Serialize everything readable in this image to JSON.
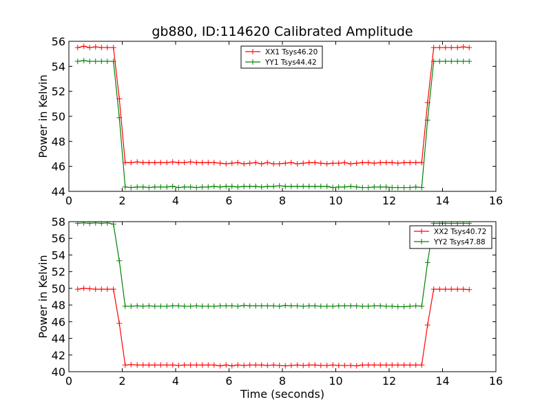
{
  "chart_data": [
    {
      "type": "line",
      "title": "gb880, ID:114620 Calibrated Amplitude",
      "xlabel": "",
      "ylabel": "Power in Kelvin",
      "xlim": [
        0,
        16
      ],
      "ylim": [
        44,
        56
      ],
      "xticks": [
        0,
        2,
        4,
        6,
        8,
        10,
        12,
        14,
        16
      ],
      "yticks": [
        44,
        46,
        48,
        50,
        52,
        54,
        56
      ],
      "legend_position": "top-center",
      "grid": false,
      "series": [
        {
          "name": "XX1 Tsys46.20",
          "color": "#ff0000",
          "x": [
            0.33,
            0.56,
            0.78,
            1.0,
            1.22,
            1.44,
            1.67,
            1.89,
            2.11,
            2.33,
            2.56,
            2.78,
            3.0,
            3.22,
            3.44,
            3.67,
            3.89,
            4.11,
            4.33,
            4.56,
            4.78,
            5.0,
            5.22,
            5.44,
            5.67,
            5.89,
            6.11,
            6.33,
            6.56,
            6.78,
            7.0,
            7.22,
            7.44,
            7.67,
            7.89,
            8.11,
            8.33,
            8.56,
            8.78,
            9.0,
            9.22,
            9.44,
            9.67,
            9.89,
            10.11,
            10.33,
            10.56,
            10.78,
            11.0,
            11.22,
            11.44,
            11.67,
            11.89,
            12.11,
            12.33,
            12.56,
            12.78,
            13.0,
            13.22,
            13.44,
            13.67,
            13.89,
            14.11,
            14.33,
            14.56,
            14.78,
            15.0
          ],
          "y": [
            55.5,
            55.6,
            55.5,
            55.55,
            55.5,
            55.5,
            55.5,
            51.4,
            46.3,
            46.3,
            46.35,
            46.3,
            46.3,
            46.3,
            46.3,
            46.3,
            46.35,
            46.3,
            46.3,
            46.35,
            46.3,
            46.3,
            46.3,
            46.3,
            46.25,
            46.2,
            46.25,
            46.3,
            46.2,
            46.25,
            46.3,
            46.2,
            46.3,
            46.2,
            46.2,
            46.25,
            46.3,
            46.2,
            46.25,
            46.3,
            46.3,
            46.25,
            46.2,
            46.25,
            46.25,
            46.3,
            46.2,
            46.25,
            46.3,
            46.3,
            46.25,
            46.3,
            46.3,
            46.3,
            46.25,
            46.3,
            46.3,
            46.3,
            46.3,
            51.1,
            55.5,
            55.5,
            55.5,
            55.5,
            55.5,
            55.55,
            55.5
          ]
        },
        {
          "name": "YY1 Tsys44.42",
          "color": "#008000",
          "x": [
            0.33,
            0.56,
            0.78,
            1.0,
            1.22,
            1.44,
            1.67,
            1.89,
            2.11,
            2.33,
            2.56,
            2.78,
            3.0,
            3.22,
            3.44,
            3.67,
            3.89,
            4.11,
            4.33,
            4.56,
            4.78,
            5.0,
            5.22,
            5.44,
            5.67,
            5.89,
            6.11,
            6.33,
            6.56,
            6.78,
            7.0,
            7.22,
            7.44,
            7.67,
            7.89,
            8.11,
            8.33,
            8.56,
            8.78,
            9.0,
            9.22,
            9.44,
            9.67,
            9.89,
            10.11,
            10.33,
            10.56,
            10.78,
            11.0,
            11.22,
            11.44,
            11.67,
            11.89,
            12.11,
            12.33,
            12.56,
            12.78,
            13.0,
            13.22,
            13.44,
            13.67,
            13.89,
            14.11,
            14.33,
            14.56,
            14.78,
            15.0
          ],
          "y": [
            54.4,
            54.45,
            54.4,
            54.4,
            54.4,
            54.4,
            54.4,
            49.9,
            44.35,
            44.3,
            44.35,
            44.35,
            44.3,
            44.35,
            44.35,
            44.35,
            44.4,
            44.3,
            44.35,
            44.35,
            44.3,
            44.35,
            44.35,
            44.4,
            44.35,
            44.4,
            44.4,
            44.35,
            44.4,
            44.4,
            44.4,
            44.35,
            44.4,
            44.4,
            44.45,
            44.4,
            44.4,
            44.4,
            44.4,
            44.4,
            44.4,
            44.4,
            44.4,
            44.3,
            44.35,
            44.35,
            44.4,
            44.35,
            44.3,
            44.3,
            44.35,
            44.35,
            44.35,
            44.3,
            44.3,
            44.3,
            44.3,
            44.35,
            44.3,
            49.7,
            54.4,
            54.4,
            54.4,
            54.4,
            54.4,
            54.4,
            54.4
          ]
        }
      ]
    },
    {
      "type": "line",
      "title": "",
      "xlabel": "Time (seconds)",
      "ylabel": "Power in Kelvin",
      "xlim": [
        0,
        16
      ],
      "ylim": [
        40,
        58
      ],
      "xticks": [
        0,
        2,
        4,
        6,
        8,
        10,
        12,
        14,
        16
      ],
      "yticks": [
        40,
        42,
        44,
        46,
        48,
        50,
        52,
        54,
        56,
        58
      ],
      "legend_position": "top-right",
      "grid": false,
      "series": [
        {
          "name": "XX2 Tsys40.72",
          "color": "#ff0000",
          "x": [
            0.33,
            0.56,
            0.78,
            1.0,
            1.22,
            1.44,
            1.67,
            1.89,
            2.11,
            2.33,
            2.56,
            2.78,
            3.0,
            3.22,
            3.44,
            3.67,
            3.89,
            4.11,
            4.33,
            4.56,
            4.78,
            5.0,
            5.22,
            5.44,
            5.67,
            5.89,
            6.11,
            6.33,
            6.56,
            6.78,
            7.0,
            7.22,
            7.44,
            7.67,
            7.89,
            8.11,
            8.33,
            8.56,
            8.78,
            9.0,
            9.22,
            9.44,
            9.67,
            9.89,
            10.11,
            10.33,
            10.56,
            10.78,
            11.0,
            11.22,
            11.44,
            11.67,
            11.89,
            12.11,
            12.33,
            12.56,
            12.78,
            13.0,
            13.22,
            13.44,
            13.67,
            13.89,
            14.11,
            14.33,
            14.56,
            14.78,
            15.0
          ],
          "y": [
            49.9,
            50.0,
            49.95,
            49.9,
            49.9,
            49.9,
            49.9,
            45.8,
            40.8,
            40.85,
            40.8,
            40.8,
            40.8,
            40.8,
            40.8,
            40.8,
            40.8,
            40.75,
            40.8,
            40.8,
            40.8,
            40.8,
            40.8,
            40.8,
            40.7,
            40.8,
            40.7,
            40.8,
            40.75,
            40.8,
            40.8,
            40.8,
            40.75,
            40.8,
            40.75,
            40.7,
            40.75,
            40.8,
            40.75,
            40.8,
            40.8,
            40.75,
            40.75,
            40.8,
            40.75,
            40.75,
            40.75,
            40.7,
            40.8,
            40.8,
            40.8,
            40.8,
            40.8,
            40.8,
            40.8,
            40.8,
            40.8,
            40.8,
            40.8,
            45.6,
            49.9,
            49.9,
            49.9,
            49.9,
            49.9,
            49.9,
            49.85
          ]
        },
        {
          "name": "YY2 Tsys47.88",
          "color": "#008000",
          "x": [
            0.33,
            0.56,
            0.78,
            1.0,
            1.22,
            1.44,
            1.67,
            1.89,
            2.11,
            2.33,
            2.56,
            2.78,
            3.0,
            3.22,
            3.44,
            3.67,
            3.89,
            4.11,
            4.33,
            4.56,
            4.78,
            5.0,
            5.22,
            5.44,
            5.67,
            5.89,
            6.11,
            6.33,
            6.56,
            6.78,
            7.0,
            7.22,
            7.44,
            7.67,
            7.89,
            8.11,
            8.33,
            8.56,
            8.78,
            9.0,
            9.22,
            9.44,
            9.67,
            9.89,
            10.11,
            10.33,
            10.56,
            10.78,
            11.0,
            11.22,
            11.44,
            11.67,
            11.89,
            12.11,
            12.33,
            12.56,
            12.78,
            13.0,
            13.22,
            13.44,
            13.67,
            13.89,
            14.11,
            14.33,
            14.56,
            14.78,
            15.0
          ],
          "y": [
            57.8,
            57.85,
            57.8,
            57.85,
            57.8,
            57.85,
            57.7,
            53.3,
            47.85,
            47.85,
            47.9,
            47.85,
            47.9,
            47.85,
            47.85,
            47.85,
            47.9,
            47.9,
            47.85,
            47.85,
            47.9,
            47.85,
            47.85,
            47.85,
            47.9,
            47.9,
            47.9,
            47.85,
            47.95,
            47.9,
            47.9,
            47.9,
            47.9,
            47.9,
            47.85,
            47.95,
            47.9,
            47.9,
            47.85,
            47.9,
            47.9,
            47.85,
            47.85,
            47.85,
            47.9,
            47.9,
            47.9,
            47.9,
            47.85,
            47.85,
            47.9,
            47.9,
            47.85,
            47.85,
            47.8,
            47.8,
            47.85,
            47.9,
            47.85,
            53.1,
            57.8,
            57.8,
            57.8,
            57.8,
            57.8,
            57.8,
            57.8
          ]
        }
      ]
    }
  ]
}
